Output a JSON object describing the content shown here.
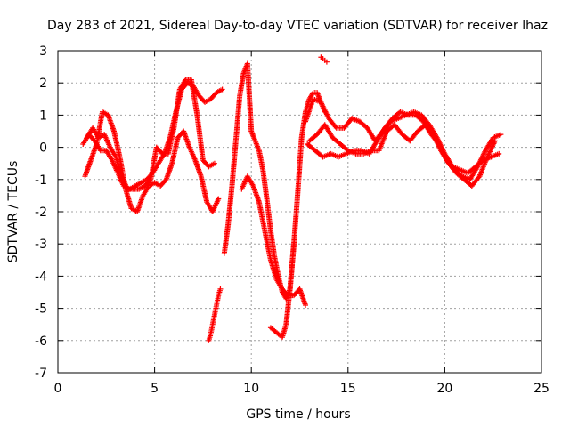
{
  "chart_data": {
    "type": "scatter",
    "title": "Day 283 of 2021, Sidereal Day-to-day VTEC variation (SDTVAR) for receiver lhaz",
    "xlabel": "GPS time / hours",
    "ylabel": "SDTVAR / TECUs",
    "xlim": [
      0,
      25
    ],
    "ylim": [
      -7,
      3
    ],
    "xticks": [
      "0",
      "5",
      "10",
      "15",
      "20",
      "25"
    ],
    "yticks": [
      "-7",
      "-6",
      "-5",
      "-4",
      "-3",
      "-2",
      "-1",
      "0",
      "1",
      "2",
      "3"
    ],
    "grid": true,
    "marker": "plus",
    "color": "#ff0000",
    "series": [
      {
        "x": [
          1.3,
          1.6,
          1.9,
          2.2,
          2.5,
          2.8,
          3.1,
          3.4,
          3.7,
          4.0,
          4.3,
          4.6,
          4.9,
          5.2,
          5.5,
          5.8,
          6.1,
          6.4,
          6.7,
          7.0,
          7.3,
          7.6,
          7.9,
          8.2,
          8.5
        ],
        "y": [
          0.1,
          0.4,
          0.2,
          -0.1,
          -0.1,
          -0.4,
          -0.8,
          -1.2,
          -1.3,
          -1.2,
          -1.1,
          -1.0,
          -0.8,
          -0.5,
          -0.2,
          0.3,
          1.1,
          1.8,
          2.0,
          1.9,
          1.6,
          1.4,
          1.5,
          1.7,
          1.8
        ]
      },
      {
        "x": [
          1.4,
          1.7,
          2.0,
          2.3,
          2.6,
          2.9,
          3.2,
          3.5,
          3.8,
          4.1,
          4.4,
          4.7,
          5.0,
          5.3,
          5.6,
          5.9,
          6.2,
          6.5,
          6.8,
          7.1,
          7.4,
          7.7,
          8.0,
          8.3
        ],
        "y": [
          -0.9,
          -0.4,
          0.1,
          1.1,
          1.0,
          0.5,
          -0.3,
          -1.3,
          -1.9,
          -2.0,
          -1.5,
          -1.2,
          -1.1,
          -1.2,
          -1.0,
          -0.5,
          0.3,
          0.5,
          0.0,
          -0.4,
          -0.9,
          -1.7,
          -2.0,
          -1.6
        ]
      },
      {
        "x": [
          1.5,
          1.8,
          2.1,
          2.4,
          2.7,
          3.0,
          3.3,
          3.6,
          3.9,
          4.2,
          4.5,
          4.8,
          5.1,
          5.4,
          5.7,
          6.0,
          6.3,
          6.6,
          6.9,
          7.2,
          7.5,
          7.8,
          8.1
        ],
        "y": [
          0.3,
          0.6,
          0.3,
          0.4,
          0.0,
          -0.3,
          -0.9,
          -1.3,
          -1.3,
          -1.3,
          -1.2,
          -1.0,
          0.0,
          -0.2,
          -0.2,
          0.6,
          1.8,
          2.1,
          2.1,
          1.0,
          -0.4,
          -0.6,
          -0.5
        ]
      },
      {
        "x": [
          7.8,
          7.9,
          8.0,
          8.1,
          8.2,
          8.3,
          8.4
        ],
        "y": [
          -6.0,
          -5.8,
          -5.5,
          -5.2,
          -4.9,
          -4.6,
          -4.4
        ]
      },
      {
        "x": [
          8.6,
          8.8,
          9.0,
          9.2,
          9.4,
          9.6,
          9.8,
          10.0,
          10.2,
          10.4,
          10.6,
          10.8,
          11.0,
          11.2,
          11.4,
          11.6,
          11.8,
          12.0,
          12.2,
          12.4,
          12.6,
          12.8,
          13.0,
          13.2,
          13.4,
          13.6,
          13.8
        ],
        "y": [
          -3.3,
          -2.4,
          -1.2,
          0.2,
          1.6,
          2.3,
          2.6,
          0.5,
          0.2,
          -0.1,
          -0.7,
          -1.6,
          -2.6,
          -3.4,
          -4.0,
          -4.5,
          -4.7,
          -4.4,
          -3.0,
          -1.4,
          0.3,
          1.1,
          1.5,
          1.7,
          1.7,
          1.4,
          1.1
        ]
      },
      {
        "x": [
          9.5,
          9.8,
          10.1,
          10.4,
          10.7,
          11.0,
          11.3,
          11.6,
          11.9,
          12.2,
          12.5,
          12.8
        ],
        "y": [
          -1.3,
          -0.9,
          -1.2,
          -1.7,
          -2.6,
          -3.5,
          -4.1,
          -4.4,
          -4.6,
          -4.6,
          -4.4,
          -4.9
        ]
      },
      {
        "x": [
          11.0,
          11.2,
          11.4,
          11.6,
          11.8,
          12.0,
          12.2
        ],
        "y": [
          -5.6,
          -5.7,
          -5.8,
          -5.9,
          -5.5,
          -4.4,
          -3.0
        ]
      },
      {
        "x": [
          13.6,
          13.7,
          13.8,
          13.9
        ],
        "y": [
          2.8,
          2.75,
          2.7,
          2.65
        ]
      },
      {
        "x": [
          12.8,
          13.2,
          13.6,
          14.0,
          14.4,
          14.8,
          15.2,
          15.6,
          16.0,
          16.4,
          16.8,
          17.2,
          17.6,
          18.0,
          18.4,
          18.8,
          19.2,
          19.6,
          20.0,
          20.4,
          20.8,
          21.2,
          21.6,
          22.0,
          22.4,
          22.8
        ],
        "y": [
          0.8,
          1.5,
          1.4,
          0.9,
          0.6,
          0.6,
          0.9,
          0.8,
          0.6,
          0.2,
          0.5,
          0.8,
          0.9,
          1.0,
          1.1,
          1.0,
          0.7,
          0.3,
          -0.2,
          -0.6,
          -0.7,
          -0.8,
          -0.6,
          -0.4,
          -0.3,
          -0.2
        ]
      },
      {
        "x": [
          13.0,
          13.4,
          13.8,
          14.2,
          14.6,
          15.0,
          15.4,
          15.8,
          16.2,
          16.6,
          17.0,
          17.4,
          17.8,
          18.2,
          18.6,
          19.0,
          19.4,
          19.8,
          20.2,
          20.6,
          21.0,
          21.4,
          21.8,
          22.2,
          22.6
        ],
        "y": [
          0.2,
          0.4,
          0.7,
          0.3,
          0.1,
          -0.1,
          -0.2,
          -0.2,
          -0.1,
          -0.1,
          0.5,
          0.7,
          0.4,
          0.2,
          0.5,
          0.7,
          0.4,
          -0.1,
          -0.5,
          -0.8,
          -1.0,
          -1.2,
          -0.9,
          -0.3,
          0.2
        ]
      },
      {
        "x": [
          12.9,
          13.3,
          13.7,
          14.1,
          14.5,
          14.9,
          15.3,
          15.7,
          16.1,
          16.5,
          16.9,
          17.3,
          17.7,
          18.1,
          18.5,
          18.9,
          19.3,
          19.7,
          20.1,
          20.5,
          20.9,
          21.3,
          21.7,
          22.1,
          22.5,
          22.9
        ],
        "y": [
          0.1,
          -0.1,
          -0.3,
          -0.2,
          -0.3,
          -0.2,
          -0.1,
          -0.1,
          -0.2,
          0.2,
          0.6,
          0.9,
          1.1,
          1.0,
          1.0,
          0.8,
          0.4,
          0.1,
          -0.4,
          -0.7,
          -0.9,
          -1.0,
          -0.6,
          -0.1,
          0.3,
          0.4
        ]
      }
    ]
  }
}
